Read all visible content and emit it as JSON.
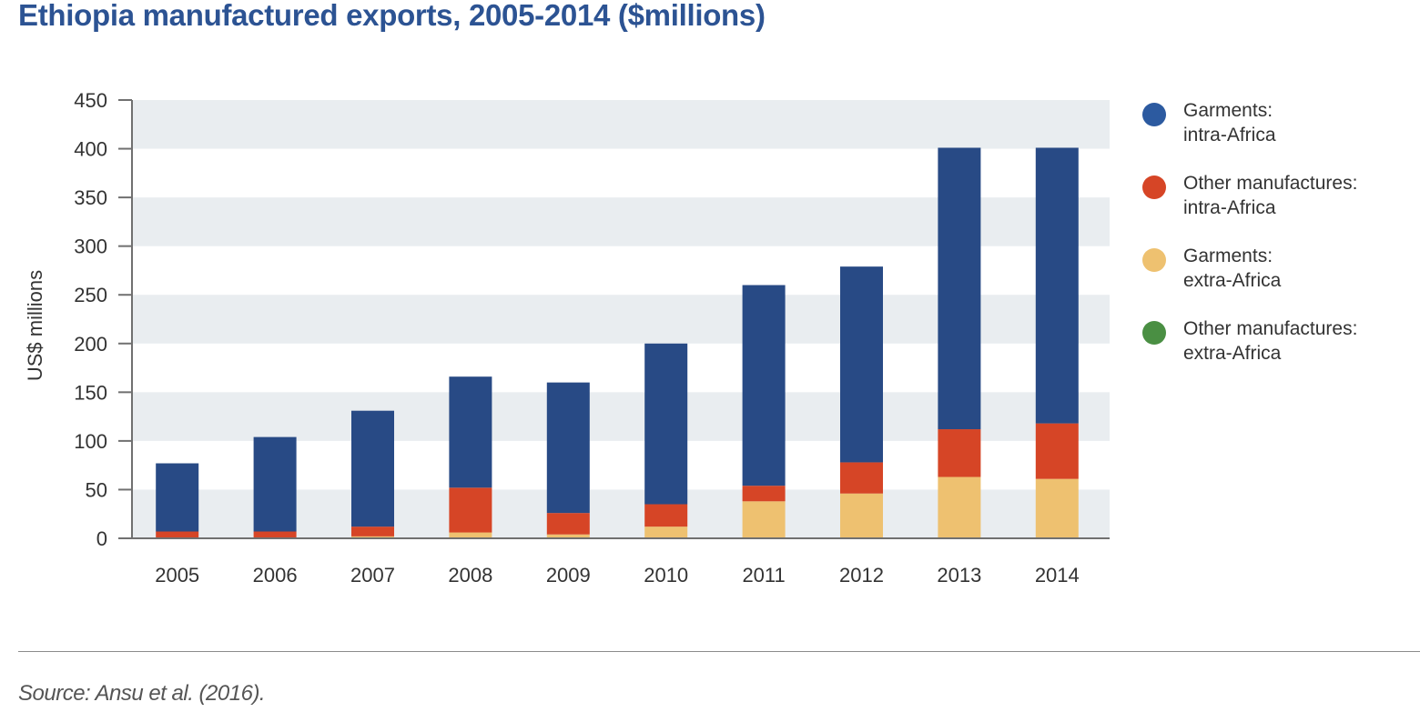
{
  "title": "Ethiopia manufactured exports, 2005-2014 ($millions)",
  "source": "Source: Ansu et al. (2016).",
  "chart_data": {
    "type": "bar",
    "stacked": true,
    "title": "Ethiopia manufactured exports, 2005-2014 ($millions)",
    "xlabel": "",
    "ylabel": "US$ millions",
    "ylim": [
      0,
      450
    ],
    "yticks": [
      0,
      50,
      100,
      150,
      200,
      250,
      300,
      350,
      400,
      450
    ],
    "grid": "alternating horizontal bands",
    "legend_position": "right",
    "categories": [
      "2005",
      "2006",
      "2007",
      "2008",
      "2009",
      "2010",
      "2011",
      "2012",
      "2013",
      "2014"
    ],
    "series": [
      {
        "name": "Garments: extra-Africa",
        "label_lines": [
          "Garments:",
          "extra-Africa"
        ],
        "color": "#eec170",
        "values": [
          0,
          0,
          2,
          6,
          4,
          12,
          38,
          46,
          63,
          61
        ]
      },
      {
        "name": "Other manufactures: intra-Africa",
        "label_lines": [
          "Other manufactures:",
          "intra-Africa"
        ],
        "color": "#d64526",
        "values": [
          7,
          7,
          10,
          46,
          22,
          23,
          16,
          32,
          49,
          57
        ]
      },
      {
        "name": "Garments: intra-Africa",
        "label_lines": [
          "Garments:",
          "intra-Africa"
        ],
        "color": "#284a85",
        "values": [
          70,
          97,
          119,
          114,
          134,
          165,
          206,
          201,
          289,
          283
        ]
      },
      {
        "name": "Other manufactures: extra-Africa",
        "label_lines": [
          "Other manufactures:",
          "extra-Africa"
        ],
        "color": "#4a8f43",
        "values": [
          0,
          0,
          0,
          0,
          0,
          0,
          0,
          0,
          0,
          0
        ]
      }
    ],
    "totals": [
      77,
      104,
      131,
      166,
      160,
      200,
      260,
      279,
      401,
      401
    ]
  },
  "legend": [
    {
      "line1": "Garments:",
      "line2": "intra-Africa",
      "color": "#2c5aa0"
    },
    {
      "line1": "Other manufactures:",
      "line2": "intra-Africa",
      "color": "#d64526"
    },
    {
      "line1": "Garments:",
      "line2": "extra-Africa",
      "color": "#eec170"
    },
    {
      "line1": "Other manufactures:",
      "line2": "extra-Africa",
      "color": "#4a8f43"
    }
  ],
  "colors": {
    "title": "#2c5393",
    "band": "#e9edf0",
    "axis": "#707070"
  }
}
